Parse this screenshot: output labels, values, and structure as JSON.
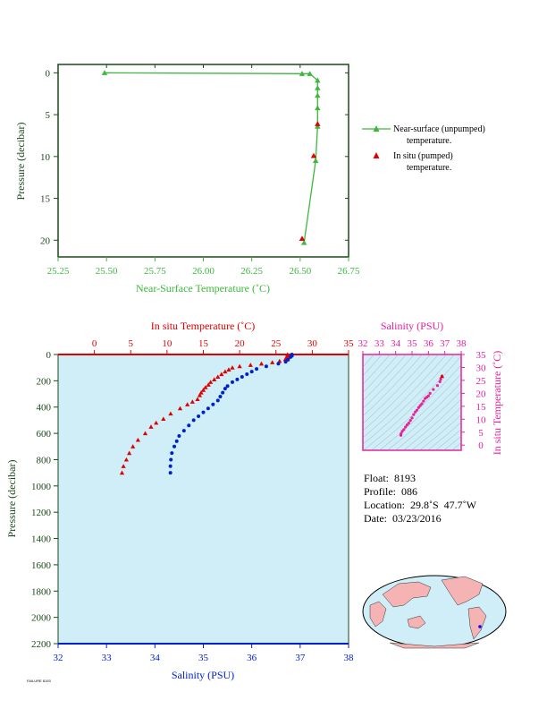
{
  "chart_data": [
    {
      "type": "line",
      "xlabel": "Near-Surface Temperature (˚C)",
      "ylabel": "Pressure (decibar)",
      "xlim": [
        25.25,
        26.75
      ],
      "ylim": [
        22,
        -1
      ],
      "xticks": [
        "25.25",
        "25.50",
        "25.75",
        "26.00",
        "26.25",
        "26.50",
        "26.75"
      ],
      "yticks": [
        "0",
        "5",
        "10",
        "15",
        "20"
      ],
      "series": [
        {
          "name": "Near-surface (unpumped) temperature.",
          "color": "#3cb83c",
          "marker": "triangle",
          "points": [
            [
              25.49,
              0.0
            ],
            [
              26.51,
              0.1
            ],
            [
              26.55,
              0.1
            ],
            [
              26.59,
              0.9
            ],
            [
              26.59,
              1.8
            ],
            [
              26.59,
              2.7
            ],
            [
              26.59,
              4.2
            ],
            [
              26.59,
              6.4
            ],
            [
              26.58,
              10.5
            ],
            [
              26.52,
              20.3
            ]
          ]
        },
        {
          "name": "In situ (pumped) temperature.",
          "color": "#e00000",
          "marker": "triangle",
          "points": [
            [
              26.59,
              6.1
            ],
            [
              26.57,
              9.9
            ],
            [
              26.51,
              19.8
            ]
          ]
        }
      ]
    },
    {
      "type": "scatter",
      "ylabel": "Pressure (decibar)",
      "xlabel_top": "In situ Temperature (˚C)",
      "xlabel_bottom": "Salinity (PSU)",
      "temperature_lim": [
        -5,
        35
      ],
      "salinity_lim": [
        32,
        38
      ],
      "ylim": [
        2200,
        0
      ],
      "temperature_ticks": [
        "0",
        "5",
        "10",
        "15",
        "20",
        "25",
        "30",
        "35"
      ],
      "salinity_ticks": [
        "32",
        "33",
        "34",
        "35",
        "36",
        "37",
        "38"
      ],
      "pressure_ticks": [
        "0",
        "200",
        "400",
        "600",
        "800",
        "1000",
        "1200",
        "1400",
        "1600",
        "1800",
        "2000",
        "2200"
      ],
      "temperature_series": {
        "color": "#e00000",
        "points": [
          [
            26.6,
            0
          ],
          [
            26.6,
            10
          ],
          [
            26.5,
            20
          ],
          [
            26.3,
            35
          ],
          [
            25.5,
            50
          ],
          [
            24.5,
            60
          ],
          [
            23,
            70
          ],
          [
            21.5,
            80
          ],
          [
            20,
            90
          ],
          [
            19,
            100
          ],
          [
            18.5,
            115
          ],
          [
            18,
            130
          ],
          [
            17.5,
            150
          ],
          [
            17,
            170
          ],
          [
            16.5,
            190
          ],
          [
            16,
            210
          ],
          [
            15.7,
            230
          ],
          [
            15.3,
            250
          ],
          [
            15,
            270
          ],
          [
            14.7,
            290
          ],
          [
            14.5,
            310
          ],
          [
            14.2,
            340
          ],
          [
            13.5,
            360
          ],
          [
            12.8,
            380
          ],
          [
            11.8,
            410
          ],
          [
            10.5,
            450
          ],
          [
            9.5,
            490
          ],
          [
            8.5,
            520
          ],
          [
            7.8,
            550
          ],
          [
            7,
            600
          ],
          [
            6,
            650
          ],
          [
            5.3,
            700
          ],
          [
            4.8,
            750
          ],
          [
            4.4,
            800
          ],
          [
            4,
            850
          ],
          [
            3.8,
            900
          ]
        ]
      },
      "salinity_series": {
        "color": "#0020d0",
        "points": [
          [
            36.83,
            0
          ],
          [
            36.83,
            10
          ],
          [
            36.8,
            20
          ],
          [
            36.75,
            40
          ],
          [
            36.7,
            55
          ],
          [
            36.55,
            70
          ],
          [
            36.3,
            90
          ],
          [
            36.1,
            110
          ],
          [
            36.0,
            130
          ],
          [
            35.9,
            150
          ],
          [
            35.8,
            170
          ],
          [
            35.7,
            190
          ],
          [
            35.6,
            210
          ],
          [
            35.5,
            240
          ],
          [
            35.45,
            260
          ],
          [
            35.4,
            290
          ],
          [
            35.35,
            320
          ],
          [
            35.3,
            350
          ],
          [
            35.2,
            380
          ],
          [
            35.1,
            410
          ],
          [
            35.0,
            440
          ],
          [
            34.9,
            470
          ],
          [
            34.8,
            500
          ],
          [
            34.7,
            540
          ],
          [
            34.6,
            580
          ],
          [
            34.5,
            620
          ],
          [
            34.45,
            660
          ],
          [
            34.4,
            700
          ],
          [
            34.35,
            750
          ],
          [
            34.33,
            800
          ],
          [
            34.32,
            850
          ],
          [
            34.32,
            900
          ]
        ]
      }
    },
    {
      "type": "scatter",
      "xlabel": "Salinity (PSU)",
      "ylabel": "In situ Temperature (˚C)",
      "xlim": [
        32,
        38
      ],
      "ylim": [
        -2,
        35
      ],
      "xticks": [
        "32",
        "33",
        "34",
        "35",
        "36",
        "37",
        "38"
      ],
      "yticks": [
        "0",
        "5",
        "10",
        "15",
        "20",
        "25",
        "30",
        "35"
      ],
      "series": [
        {
          "color": "#e8209a",
          "points": [
            [
              34.32,
              3.8
            ],
            [
              34.33,
              4.4
            ],
            [
              34.4,
              5.3
            ],
            [
              34.5,
              6
            ],
            [
              34.6,
              7
            ],
            [
              34.7,
              7.8
            ],
            [
              34.8,
              8.5
            ],
            [
              34.9,
              9.5
            ],
            [
              35.0,
              10.5
            ],
            [
              35.1,
              11.8
            ],
            [
              35.2,
              12.8
            ],
            [
              35.3,
              13.5
            ],
            [
              35.4,
              14.5
            ],
            [
              35.5,
              15.3
            ],
            [
              35.6,
              16
            ],
            [
              35.7,
              17
            ],
            [
              35.8,
              18
            ],
            [
              35.9,
              18.5
            ],
            [
              36.0,
              19
            ],
            [
              36.1,
              20
            ],
            [
              36.3,
              21.5
            ],
            [
              36.55,
              23
            ],
            [
              36.7,
              24.5
            ],
            [
              36.75,
              25.5
            ],
            [
              36.83,
              26.6
            ]
          ]
        }
      ]
    }
  ],
  "info": {
    "float": "Float:  8193",
    "profile": "Profile:  086",
    "location": "Location:  29.8˚S  47.7˚W",
    "date": "Date:  03/23/2016"
  },
  "legend": {
    "unpumped": "Near-surface (unpumped)\n      temperature.",
    "pumped": "In situ (pumped)\n      temperature."
  },
  "map": {
    "marker_color": "#0000ff"
  },
  "footer": "FAILURE 8193"
}
